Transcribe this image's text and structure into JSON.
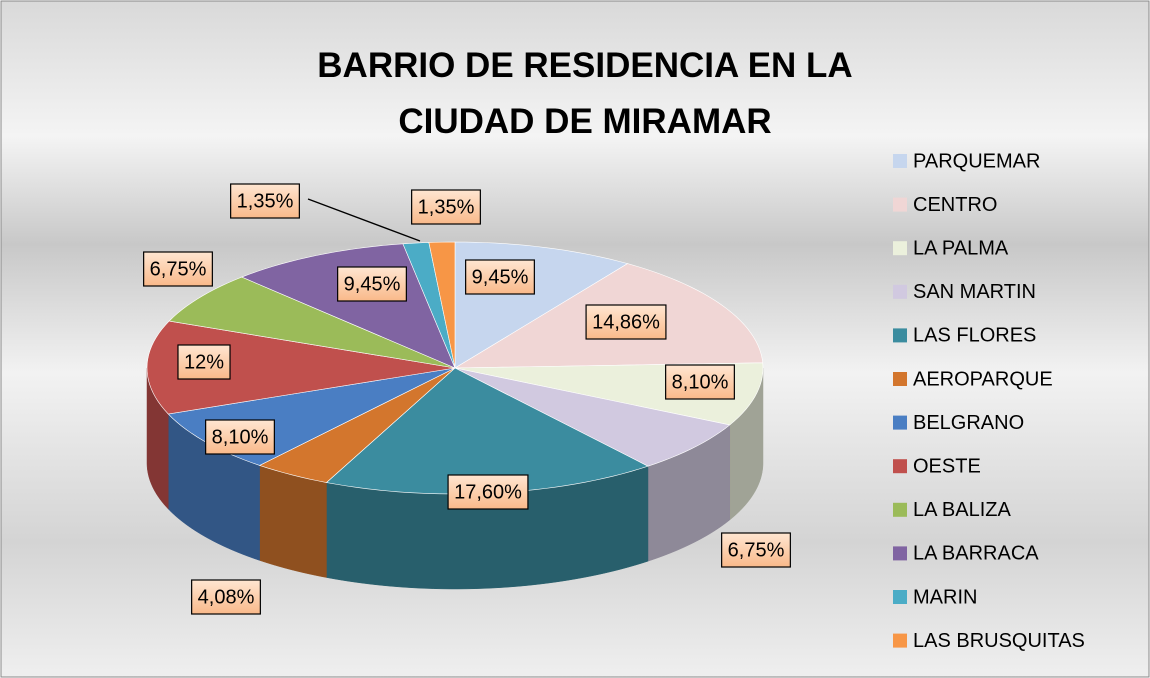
{
  "chart_data": {
    "type": "pie3d",
    "title": "BARRIO DE RESIDENCIA EN LA CIUDAD DE MIRAMAR",
    "categories": [
      "PARQUEMAR",
      "CENTRO",
      "LA PALMA",
      "SAN MARTIN",
      "LAS FLORES",
      "AEROPARQUE",
      "BELGRANO",
      "OESTE",
      "LA BALIZA",
      "LA BARRACA",
      "MARIN",
      "LAS BRUSQUITAS"
    ],
    "values": [
      9.45,
      14.86,
      8.1,
      6.75,
      17.6,
      4.08,
      8.1,
      12,
      6.75,
      9.45,
      1.35,
      1.35
    ],
    "value_labels": [
      "9,45%",
      "14,86%",
      "8,10%",
      "6,75%",
      "17,60%",
      "4,08%",
      "8,10%",
      "12%",
      "6,75%",
      "9,45%",
      "1,35%",
      "1,35%"
    ],
    "colors": [
      "#c6d6ee",
      "#f0d6d5",
      "#ebf0dc",
      "#d1c9e0",
      "#3b8c9f",
      "#d3762d",
      "#4a7ec3",
      "#c0504d",
      "#9bbb59",
      "#8064a2",
      "#4bacc6",
      "#f79646"
    ],
    "legend": "right"
  }
}
